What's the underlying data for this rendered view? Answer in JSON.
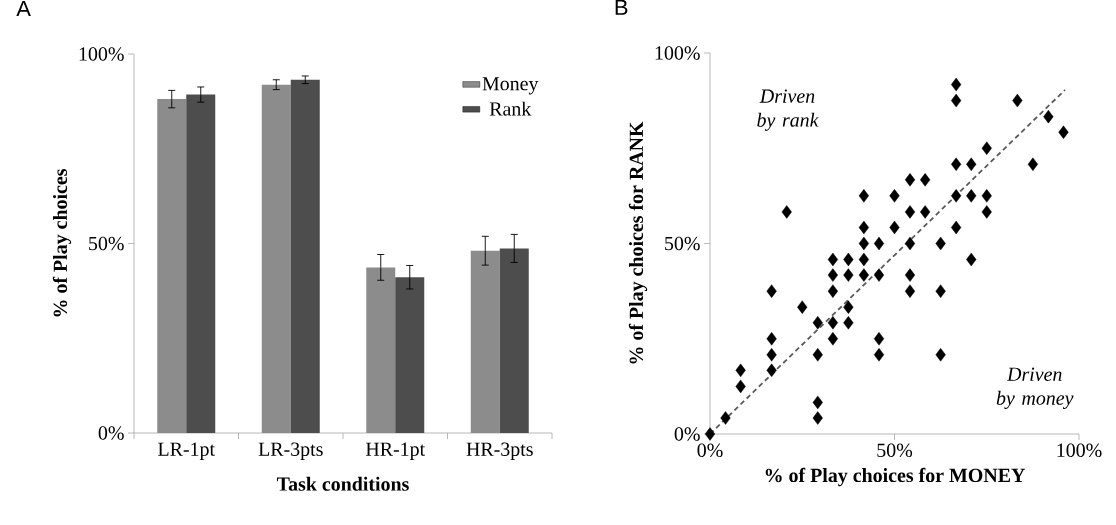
{
  "chart_data": [
    {
      "type": "bar",
      "xlabel": "Task conditions",
      "ylabel": "% of Play choices",
      "annotations": [
        "A"
      ],
      "categories": [
        "LR-1pt",
        "LR-3pts",
        "HR-1pt",
        "HR-3pts"
      ],
      "series": [
        {
          "name": "Money",
          "color": "#8c8c8c",
          "values": [
            88.1,
            91.9,
            43.7,
            48.1
          ],
          "errors": [
            2.3,
            1.3,
            3.4,
            3.8
          ]
        },
        {
          "name": "Rank",
          "color": "#4d4d4d",
          "values": [
            89.3,
            93.2,
            41.1,
            48.7
          ],
          "errors": [
            2.0,
            1.0,
            3.1,
            3.7
          ]
        }
      ],
      "ylim": [
        0,
        100
      ],
      "yticks": [
        {
          "value": 0,
          "label": "0%"
        },
        {
          "value": 50,
          "label": "50%"
        },
        {
          "value": 100,
          "label": "100%"
        }
      ],
      "legend": "top right"
    },
    {
      "type": "scatter",
      "xlabel": "% of Play choices for MONEY",
      "ylabel": "% of Play choices for RANK",
      "annotations": [
        "B",
        "Driven by rank",
        "Driven by money"
      ],
      "series": [
        {
          "type": "scatter",
          "color": "#000000",
          "marker": "diamond",
          "x": [
            0,
            4.2,
            8.3,
            8.3,
            16.7,
            16.7,
            16.7,
            16.7,
            25,
            29.2,
            29.2,
            29.2,
            29.2,
            33.3,
            33.3,
            33.3,
            33.3,
            33.3,
            37.5,
            37.5,
            37.5,
            37.5,
            41.7,
            41.7,
            41.7,
            45.8,
            45.8,
            45.8,
            45.8,
            54.2,
            54.2,
            54.2,
            62.5,
            62.5,
            62.5,
            70.8,
            66.7,
            66.7,
            83.3,
            91.7,
            95.8,
            75,
            66.7,
            70.8,
            87.5,
            54.2,
            58.3,
            41.7,
            50,
            66.7,
            70.8,
            75,
            75,
            54.2,
            58.3,
            20.8,
            41.7,
            50,
            66.7
          ],
          "values": [
            0,
            4.2,
            16.7,
            12.5,
            37.5,
            25,
            20.8,
            16.7,
            33.3,
            29.2,
            20.8,
            8.3,
            4.2,
            45.8,
            41.7,
            37.5,
            29.2,
            25,
            45.8,
            41.7,
            33.3,
            29.2,
            50,
            45.8,
            41.7,
            50,
            41.7,
            25,
            20.8,
            50,
            41.7,
            37.5,
            50,
            37.5,
            20.8,
            45.8,
            91.7,
            87.5,
            87.5,
            83.3,
            79.2,
            75,
            70.8,
            70.8,
            70.8,
            66.7,
            66.7,
            62.5,
            62.5,
            62.5,
            62.5,
            62.5,
            58.3,
            58.3,
            58.3,
            58.3,
            54.2,
            54.2,
            54.2
          ]
        },
        {
          "type": "line",
          "color": "#595959",
          "marker": "none",
          "line_style": "dashed",
          "x": [
            0,
            96.2
          ],
          "values": [
            0,
            90.3
          ]
        }
      ],
      "xlim": [
        0,
        100
      ],
      "ylim": [
        0,
        100
      ],
      "xticks": [
        {
          "value": 0,
          "label": "0%"
        },
        {
          "value": 50,
          "label": "50%"
        },
        {
          "value": 100,
          "label": "100%"
        }
      ],
      "yticks": [
        {
          "value": 0,
          "label": "0%"
        },
        {
          "value": 50,
          "label": "50%"
        },
        {
          "value": 100,
          "label": "100%"
        }
      ]
    }
  ]
}
